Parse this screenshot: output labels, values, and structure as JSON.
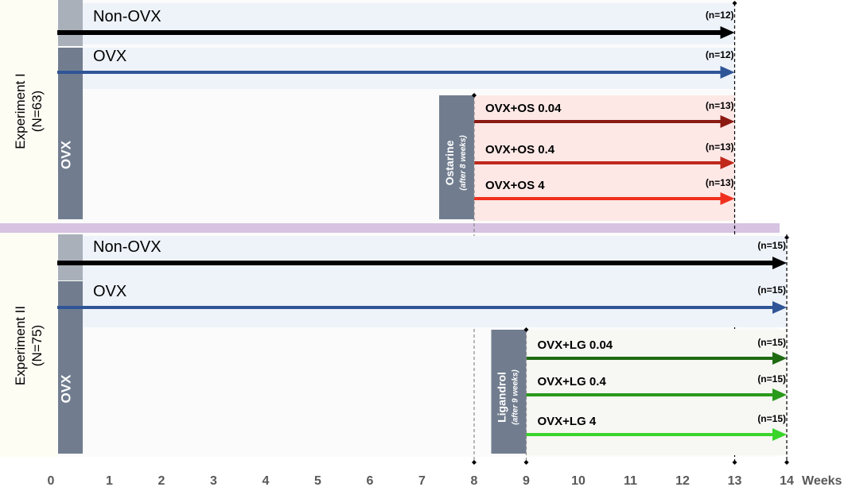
{
  "x_axis": {
    "ticks": [
      "0",
      "1",
      "2",
      "3",
      "4",
      "5",
      "6",
      "7",
      "8",
      "9",
      "10",
      "11",
      "12",
      "13",
      "14"
    ],
    "unit_label": "Weeks"
  },
  "experiments": [
    {
      "label": "Experiment I",
      "count": "(N=63)",
      "surgery_label": "OVX",
      "treatment": {
        "name": "Ostarine",
        "note": "(after 8 weeks)",
        "start_week": 8
      },
      "end_week": 13,
      "groups": [
        {
          "name": "Non-OVX",
          "n": "(n=12)",
          "color": "#000000"
        },
        {
          "name": "OVX",
          "n": "(n=12)",
          "color": "#2f5597"
        },
        {
          "name": "OVX+OS 0.04",
          "n": "(n=13)",
          "color": "#8b1a12"
        },
        {
          "name": "OVX+OS 0.4",
          "n": "(n=13)",
          "color": "#c0281a"
        },
        {
          "name": "OVX+OS 4",
          "n": "(n=13)",
          "color": "#f0301e"
        }
      ]
    },
    {
      "label": "Experiment II",
      "count": "(N=75)",
      "surgery_label": "OVX",
      "treatment": {
        "name": "Ligandrol",
        "note": "(after 9 weeks)",
        "start_week": 9
      },
      "end_week": 14,
      "groups": [
        {
          "name": "Non-OVX",
          "n": "(n=15)",
          "color": "#000000"
        },
        {
          "name": "OVX",
          "n": "(n=15)",
          "color": "#2f5597"
        },
        {
          "name": "OVX+LG 0.04",
          "n": "(n=15)",
          "color": "#1e6b12"
        },
        {
          "name": "OVX+LG 0.4",
          "n": "(n=15)",
          "color": "#2a9a1a"
        },
        {
          "name": "OVX+LG 4",
          "n": "(n=15)",
          "color": "#3ad42a"
        }
      ]
    }
  ]
}
